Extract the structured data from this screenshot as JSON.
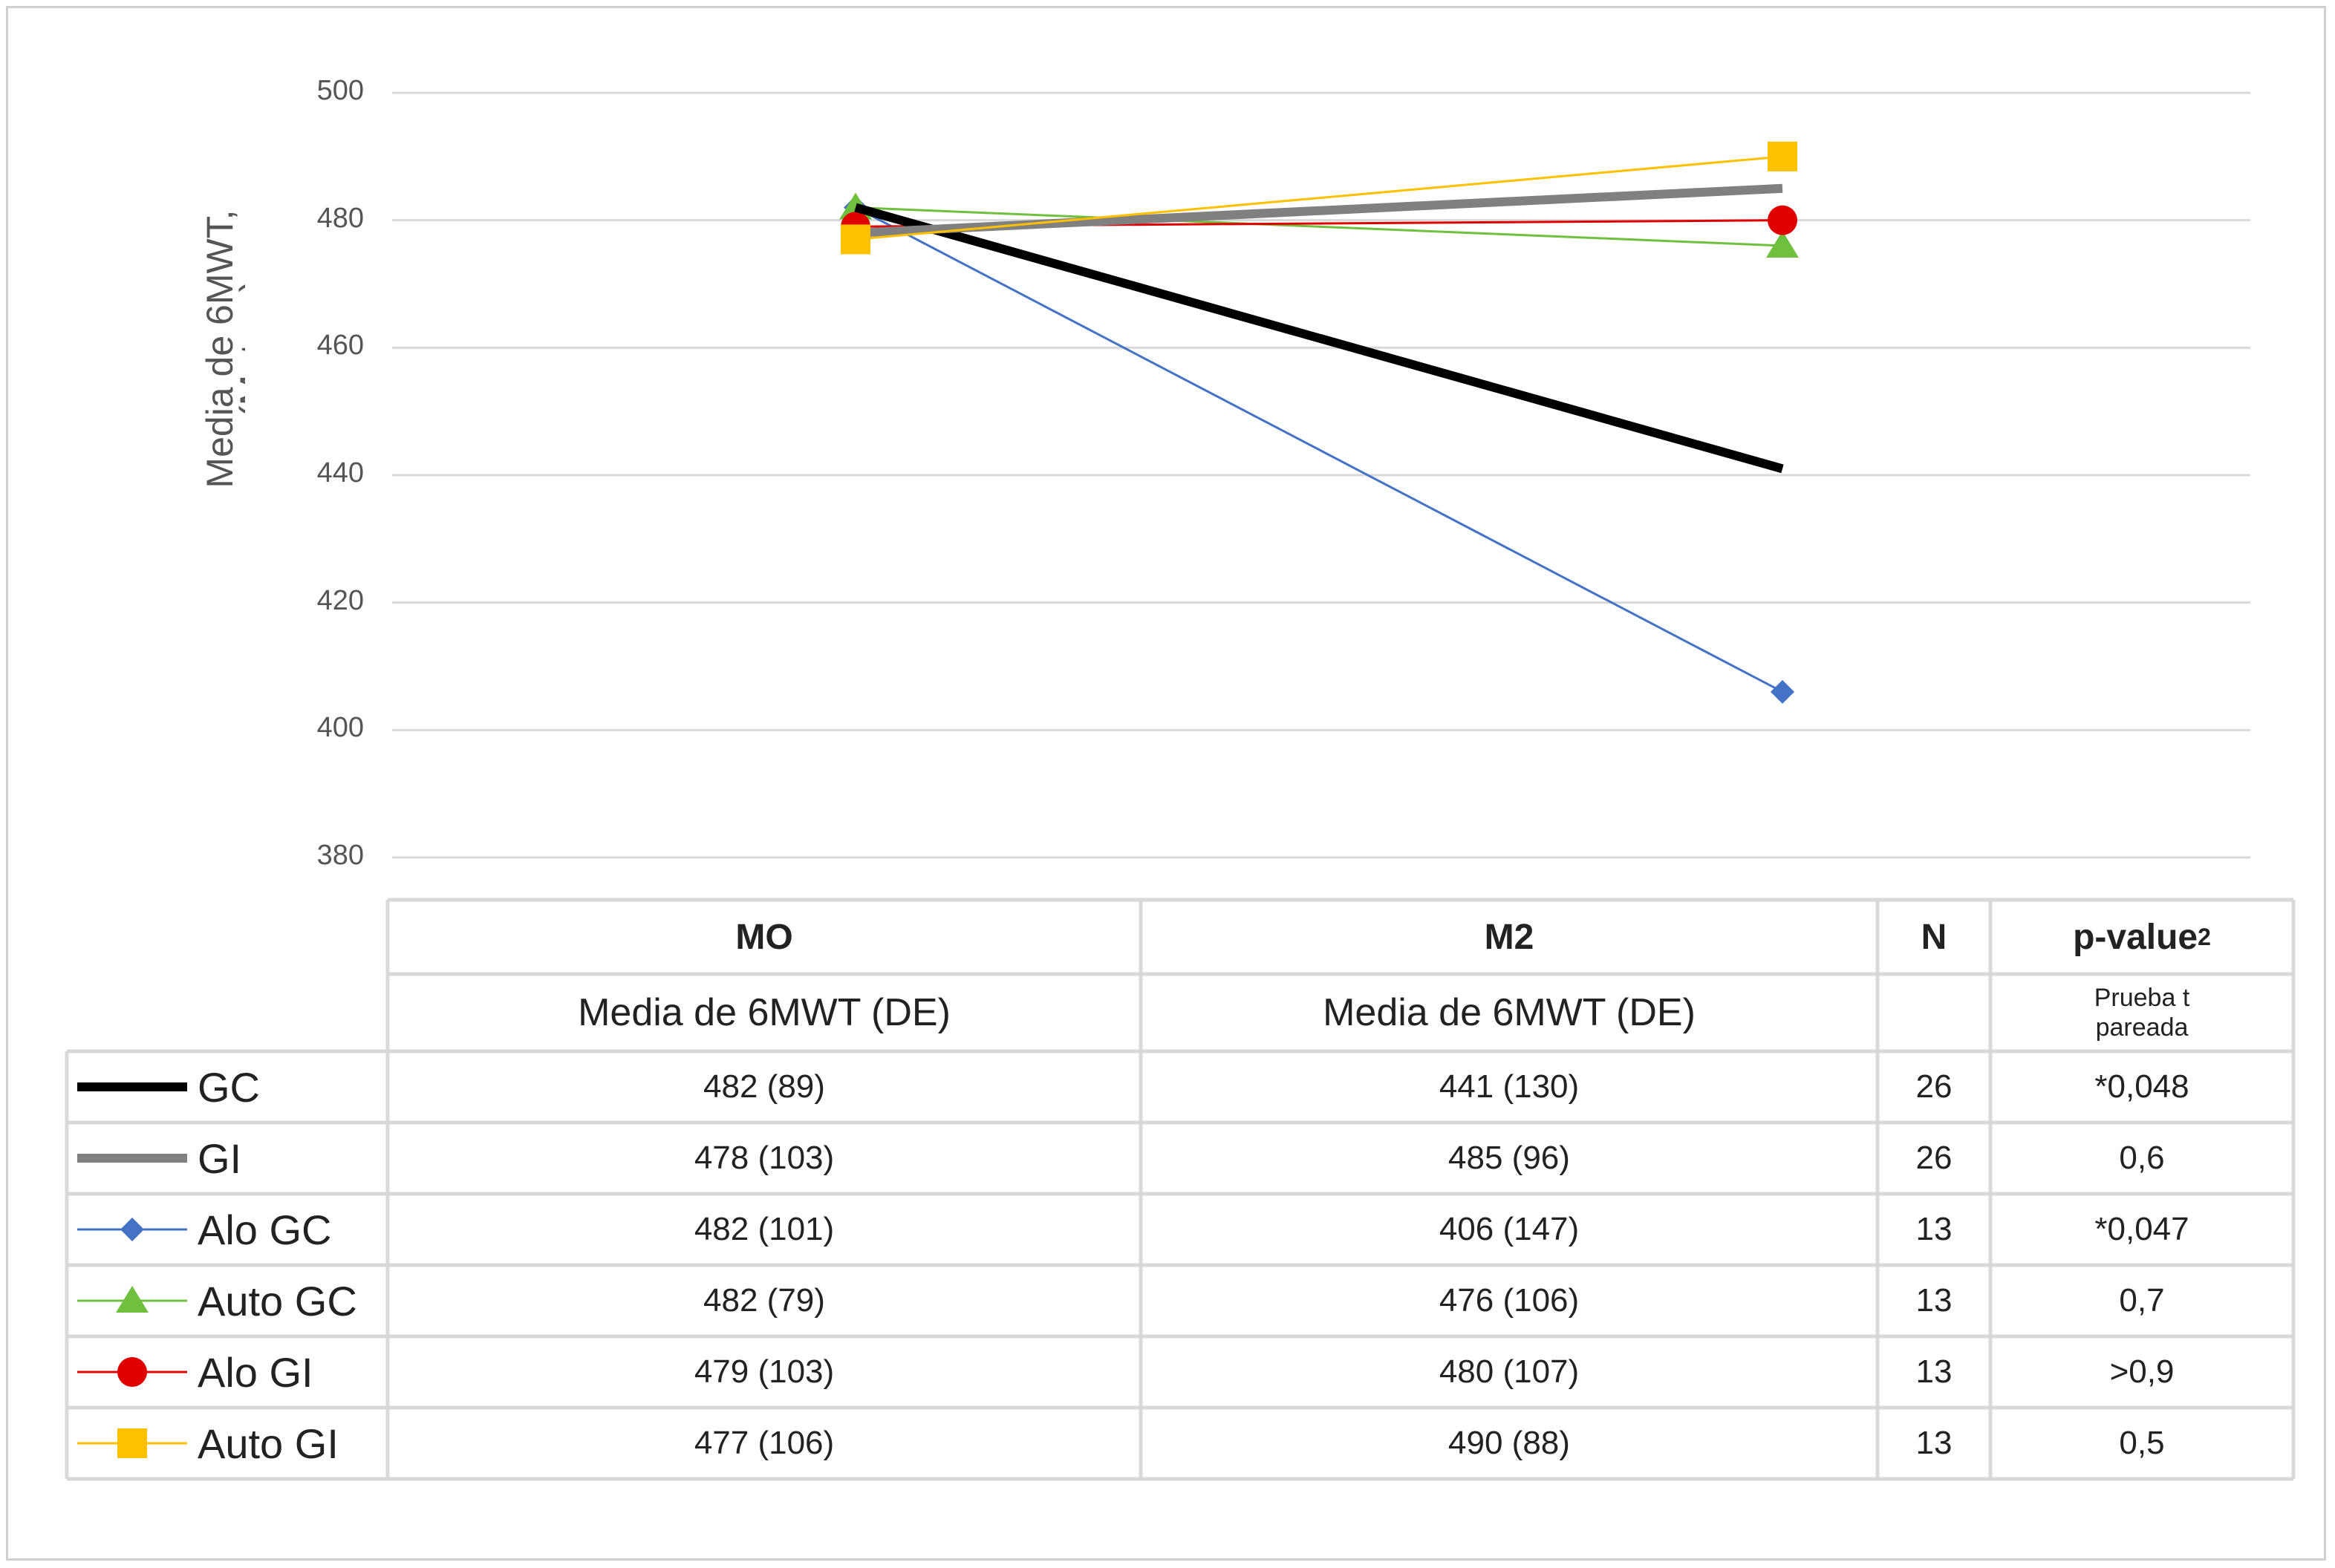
{
  "chart_data": {
    "type": "line",
    "ylabel_line1": "Media de 6MWT,",
    "ylabel_line2": "(Metros)",
    "ylim": [
      380,
      500
    ],
    "yticks": [
      "500",
      "480",
      "460",
      "440",
      "420",
      "400",
      "380"
    ],
    "grid": true,
    "x": [
      "MO",
      "M2"
    ],
    "series": [
      {
        "name": "GC",
        "values": [
          482,
          441
        ],
        "color": "#000000",
        "marker": "none",
        "width": 12
      },
      {
        "name": "GI",
        "values": [
          478,
          485
        ],
        "color": "#808080",
        "marker": "none",
        "width": 12
      },
      {
        "name": "Alo GC",
        "values": [
          482,
          406
        ],
        "color": "#4472c4",
        "marker": "diamond",
        "width": 3
      },
      {
        "name": "Auto GC",
        "values": [
          482,
          476
        ],
        "color": "#70c040",
        "marker": "triangle",
        "width": 3
      },
      {
        "name": "Alo GI",
        "values": [
          479,
          480
        ],
        "color": "#e00000",
        "marker": "circle",
        "width": 3
      },
      {
        "name": "Auto GI",
        "values": [
          477,
          490
        ],
        "color": "#ffc000",
        "marker": "square",
        "width": 3
      }
    ]
  },
  "table": {
    "col_mo": "MO",
    "col_m2": "M2",
    "col_n": "N",
    "col_p": "p-value",
    "col_p_sup": "2",
    "sub_mo": "Media de 6MWT (DE)",
    "sub_m2": "Media de 6MWT (DE)",
    "sub_p_line1": "Prueba t",
    "sub_p_line2": "pareada",
    "rows": [
      {
        "label": "GC",
        "mo": "482 (89)",
        "m2": "441 (130)",
        "n": "26",
        "p": "*0,048"
      },
      {
        "label": "GI",
        "mo": "478 (103)",
        "m2": "485 (96)",
        "n": "26",
        "p": "0,6"
      },
      {
        "label": "Alo GC",
        "mo": "482 (101)",
        "m2": "406 (147)",
        "n": "13",
        "p": "*0,047"
      },
      {
        "label": "Auto GC",
        "mo": "482 (79)",
        "m2": "476 (106)",
        "n": "13",
        "p": "0,7"
      },
      {
        "label": "Alo GI",
        "mo": "479 (103)",
        "m2": "480 (107)",
        "n": "13",
        "p": ">0,9"
      },
      {
        "label": "Auto GI",
        "mo": "477 (106)",
        "m2": "490 (88)",
        "n": "13",
        "p": "0,5"
      }
    ]
  }
}
